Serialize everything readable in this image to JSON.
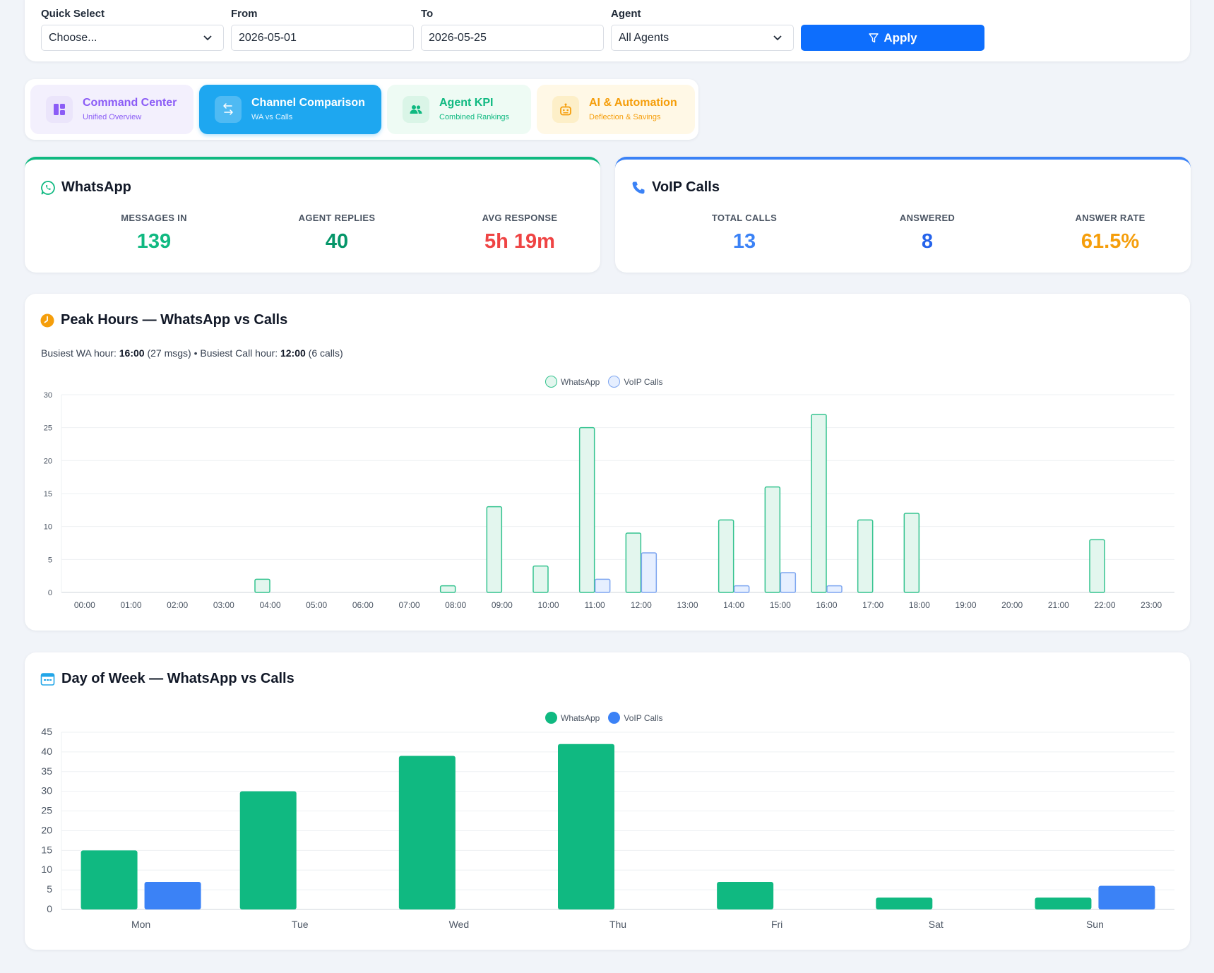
{
  "filters": {
    "quick_select": {
      "label": "Quick Select",
      "value": "Choose..."
    },
    "from": {
      "label": "From",
      "value": "2026-05-01"
    },
    "to": {
      "label": "To",
      "value": "2026-05-25"
    },
    "agent": {
      "label": "Agent",
      "value": "All Agents"
    },
    "apply_label": "Apply"
  },
  "tabs": [
    {
      "title": "Command Center",
      "subtitle": "Unified Overview",
      "active": false
    },
    {
      "title": "Channel Comparison",
      "subtitle": "WA vs Calls",
      "active": true
    },
    {
      "title": "Agent KPI",
      "subtitle": "Combined Rankings",
      "active": false
    },
    {
      "title": "AI & Automation",
      "subtitle": "Deflection & Savings",
      "active": false
    }
  ],
  "whatsapp": {
    "title": "WhatsApp",
    "accent": "#10b981",
    "stats": [
      {
        "label": "MESSAGES IN",
        "value": "139",
        "color": "#10b981"
      },
      {
        "label": "AGENT REPLIES",
        "value": "40",
        "color": "#059669"
      },
      {
        "label": "AVG RESPONSE",
        "value": "5h 19m",
        "color": "#ef4444"
      }
    ]
  },
  "voip": {
    "title": "VoIP Calls",
    "accent": "#3b82f6",
    "stats": [
      {
        "label": "TOTAL CALLS",
        "value": "13",
        "color": "#3b82f6"
      },
      {
        "label": "ANSWERED",
        "value": "8",
        "color": "#2563eb"
      },
      {
        "label": "ANSWER RATE",
        "value": "61.5%",
        "color": "#f59e0b"
      }
    ]
  },
  "peak": {
    "title": "Peak Hours — WhatsApp vs Calls",
    "busiest_prefix": "Busiest WA hour: ",
    "busiest_wa_hour": "16:00",
    "busiest_wa_detail": " (27 msgs) • Busiest Call hour: ",
    "busiest_call_hour": "12:00",
    "busiest_call_detail": " (6 calls)"
  },
  "dow": {
    "title": "Day of Week — WhatsApp vs Calls"
  },
  "chart_data": [
    {
      "type": "bar",
      "title": "Peak Hours — WhatsApp vs Calls",
      "categories": [
        "00:00",
        "01:00",
        "02:00",
        "03:00",
        "04:00",
        "05:00",
        "06:00",
        "07:00",
        "08:00",
        "09:00",
        "10:00",
        "11:00",
        "12:00",
        "13:00",
        "14:00",
        "15:00",
        "16:00",
        "17:00",
        "18:00",
        "19:00",
        "20:00",
        "21:00",
        "22:00",
        "23:00"
      ],
      "series": [
        {
          "name": "WhatsApp",
          "values": [
            0,
            0,
            0,
            0,
            2,
            0,
            0,
            0,
            1,
            13,
            4,
            25,
            9,
            0,
            11,
            16,
            27,
            11,
            12,
            0,
            0,
            0,
            8,
            0
          ],
          "fill": "#e3f6ee",
          "stroke": "#34c38f"
        },
        {
          "name": "VoIP Calls",
          "values": [
            0,
            0,
            0,
            0,
            0,
            0,
            0,
            0,
            0,
            0,
            0,
            2,
            6,
            0,
            1,
            3,
            1,
            0,
            0,
            0,
            0,
            0,
            0,
            0
          ],
          "fill": "#e6efff",
          "stroke": "#7ea6f0"
        }
      ],
      "ylim": [
        0,
        30
      ],
      "yticks": [
        0,
        5,
        10,
        15,
        20,
        25,
        30
      ],
      "legend": "top-center",
      "grid": true
    },
    {
      "type": "bar",
      "title": "Day of Week — WhatsApp vs Calls",
      "categories": [
        "Mon",
        "Tue",
        "Wed",
        "Thu",
        "Fri",
        "Sat",
        "Sun"
      ],
      "series": [
        {
          "name": "WhatsApp",
          "values": [
            15,
            30,
            39,
            42,
            7,
            3,
            3
          ],
          "fill": "#10b981"
        },
        {
          "name": "VoIP Calls",
          "values": [
            7,
            0,
            0,
            0,
            0,
            0,
            6
          ],
          "fill": "#3b82f6"
        }
      ],
      "ylim": [
        0,
        45
      ],
      "yticks": [
        0,
        5,
        10,
        15,
        20,
        25,
        30,
        35,
        40,
        45
      ],
      "legend": "top-center",
      "grid": true
    }
  ]
}
